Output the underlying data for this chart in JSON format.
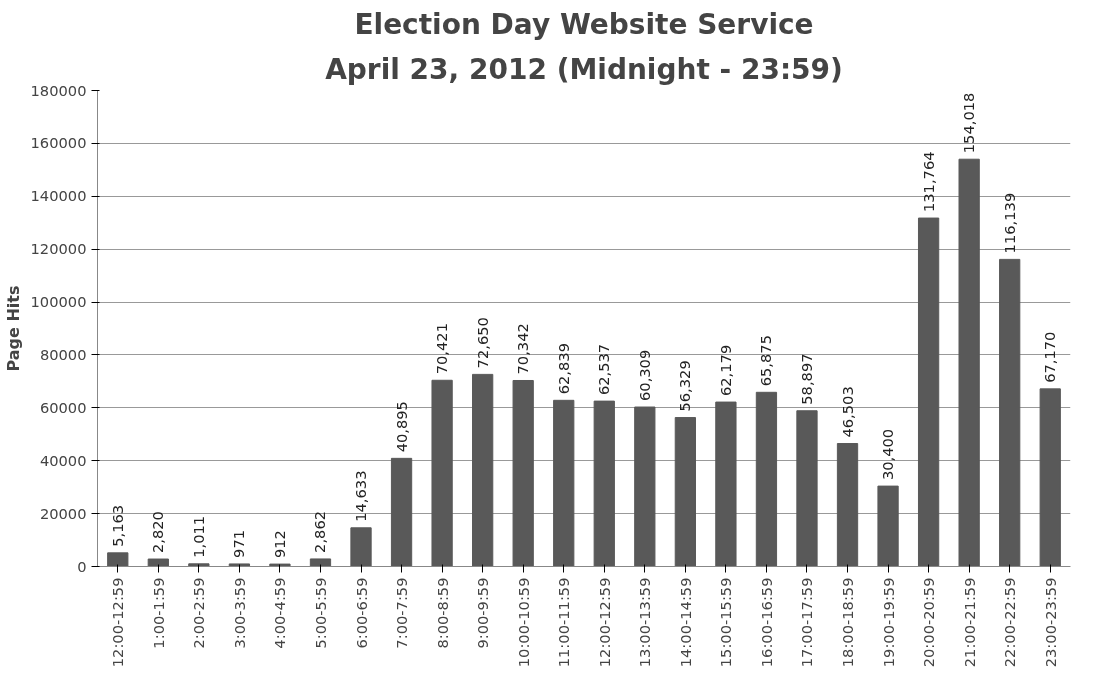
{
  "chart_data": {
    "type": "bar",
    "title": "Election Day Website Service",
    "subtitle": "April 23, 2012 (Midnight - 23:59)",
    "ylabel": "Page Hits",
    "categories": [
      "12:00-12:59",
      "1:00-1:59",
      "2:00-2:59",
      "3:00-3:59",
      "4:00-4:59",
      "5:00-5:59",
      "6:00-6:59",
      "7:00-7:59",
      "8:00-8:59",
      "9:00-9:59",
      "10:00-10:59",
      "11:00-11:59",
      "12:00-12:59",
      "13:00-13:59",
      "14:00-14:59",
      "15:00-15:59",
      "16:00-16:59",
      "17:00-17:59",
      "18:00-18:59",
      "19:00-19:59",
      "20:00-20:59",
      "21:00-21:59",
      "22:00-22:59",
      "23:00-23:59"
    ],
    "values": [
      5163,
      2820,
      1011,
      971,
      912,
      2862,
      14633,
      40895,
      70421,
      72650,
      70342,
      62839,
      62537,
      60309,
      56329,
      62179,
      65875,
      58897,
      46503,
      30400,
      131764,
      154018,
      116139,
      67170
    ],
    "value_labels": [
      "5,163",
      "2,820",
      "1,011",
      "971",
      "912",
      "2,862",
      "14,633",
      "40,895",
      "70,421",
      "72,650",
      "70,342",
      "62,839",
      "62,537",
      "60,309",
      "56,329",
      "62,179",
      "65,875",
      "58,897",
      "46,503",
      "30,400",
      "131,764",
      "154,018",
      "116,139",
      "67,170"
    ],
    "color": "#595959",
    "ylim": [
      0,
      180000
    ],
    "yticks": [
      0,
      20000,
      40000,
      60000,
      80000,
      100000,
      120000,
      140000,
      160000,
      180000
    ],
    "grid": "y"
  }
}
